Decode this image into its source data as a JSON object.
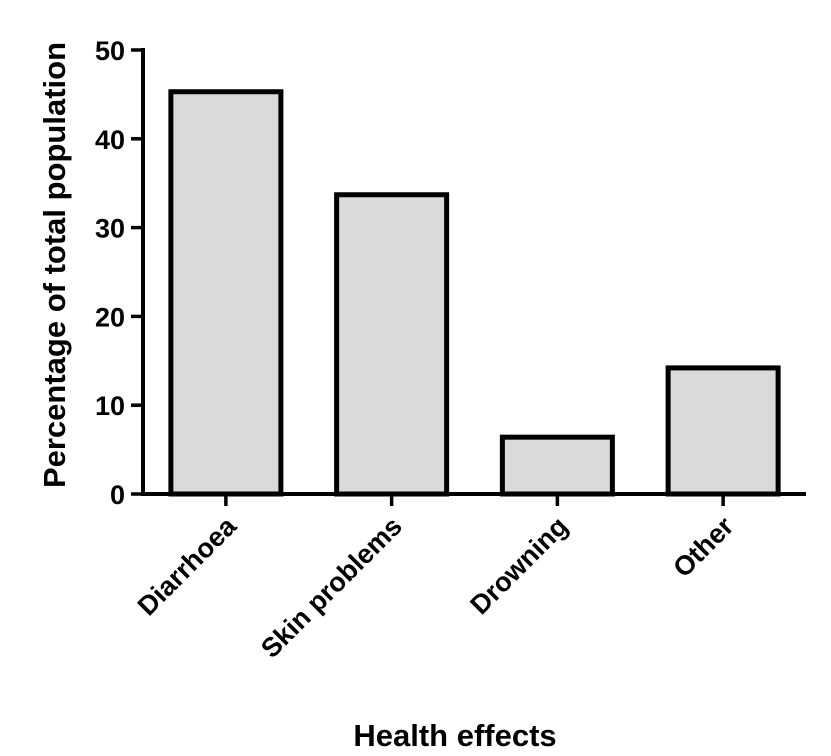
{
  "chart_data": {
    "type": "bar",
    "title": "",
    "xlabel": "Health effects",
    "ylabel": "Percentage of total population",
    "categories": [
      "Diarrhoea",
      "Skin problems",
      "Drowning",
      "Other"
    ],
    "values": [
      45.3,
      33.7,
      6.4,
      14.2
    ],
    "ylim": [
      0,
      50
    ],
    "yticks": [
      "0",
      "10",
      "20",
      "30",
      "40",
      "50"
    ],
    "grid": false,
    "legend": "none",
    "colors": {
      "bar_fill": "#dadada",
      "bar_stroke": "#000000"
    }
  }
}
